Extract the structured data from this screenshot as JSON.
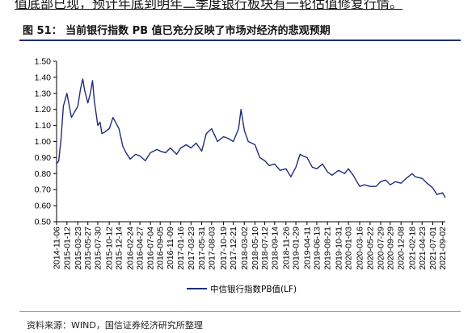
{
  "header_text": "值底部已现，预计年底到明年二季度银行板块有一轮估值修复行情。",
  "figure": {
    "title": "图 51： 当前银行指数 PB 值已充分反映了市场对经济的悲观预期",
    "source": "资料来源：WIND，国信证券经济研究所整理"
  },
  "colors": {
    "series": "#1f2e78",
    "rule": "#1f2e78"
  },
  "chart_data": {
    "type": "line",
    "title": "",
    "xlabel": "",
    "ylabel": "",
    "ylim": [
      0.5,
      1.5
    ],
    "yticks": [
      "1.50",
      "1.40",
      "1.30",
      "1.20",
      "1.10",
      "1.00",
      "0.90",
      "0.80",
      "0.70",
      "0.60",
      "0.50"
    ],
    "grid": false,
    "legend_position": "bottom-center",
    "x_tick_labels": [
      "2014-11-06",
      "2015-01-12",
      "2015-03-23",
      "2015-05-27",
      "2015-07-30",
      "2015-10-12",
      "2015-12-14",
      "2016-02-24",
      "2016-04-27",
      "2016-07-04",
      "2016-09-05",
      "2016-11-09",
      "2017-01-16",
      "2017-03-23",
      "2017-05-31",
      "2017-08-03",
      "2017-10-19",
      "2017-12-21",
      "2018-03-02",
      "2018-05-10",
      "2018-07-12",
      "2018-09-14",
      "2018-11-26",
      "2019-01-29",
      "2019-04-11",
      "2019-06-13",
      "2019-08-21",
      "2019-10-31",
      "2020-01-03",
      "2020-03-16",
      "2020-05-22",
      "2020-07-29",
      "2020-09-29",
      "2020-12-08",
      "2021-02-18",
      "2021-04-23",
      "2021-07-01",
      "2021-09-02"
    ],
    "series": [
      {
        "name": "中信银行指数PB值(LF)",
        "x": [
          "2014-11-06",
          "2014-11-20",
          "2014-12-05",
          "2014-12-20",
          "2015-01-12",
          "2015-02-10",
          "2015-03-23",
          "2015-04-10",
          "2015-04-24",
          "2015-05-06",
          "2015-05-27",
          "2015-06-12",
          "2015-06-26",
          "2015-07-08",
          "2015-07-30",
          "2015-08-14",
          "2015-08-26",
          "2015-09-15",
          "2015-10-12",
          "2015-11-05",
          "2015-12-14",
          "2016-01-08",
          "2016-01-28",
          "2016-02-24",
          "2016-03-30",
          "2016-04-27",
          "2016-06-01",
          "2016-07-04",
          "2016-08-15",
          "2016-09-05",
          "2016-10-10",
          "2016-11-09",
          "2016-12-20",
          "2017-01-16",
          "2017-02-20",
          "2017-03-23",
          "2017-04-25",
          "2017-05-31",
          "2017-06-30",
          "2017-08-03",
          "2017-09-10",
          "2017-10-19",
          "2017-11-15",
          "2017-12-21",
          "2018-01-24",
          "2018-02-09",
          "2018-03-02",
          "2018-03-28",
          "2018-05-10",
          "2018-06-10",
          "2018-07-12",
          "2018-08-10",
          "2018-09-14",
          "2018-10-19",
          "2018-11-26",
          "2018-12-28",
          "2019-01-29",
          "2019-02-25",
          "2019-03-15",
          "2019-04-11",
          "2019-05-15",
          "2019-06-13",
          "2019-07-20",
          "2019-08-21",
          "2019-09-20",
          "2019-10-31",
          "2019-12-10",
          "2020-01-03",
          "2020-02-03",
          "2020-03-16",
          "2020-04-15",
          "2020-05-22",
          "2020-06-30",
          "2020-07-29",
          "2020-08-31",
          "2020-09-29",
          "2020-11-01",
          "2020-12-08",
          "2021-01-10",
          "2021-02-18",
          "2021-03-10",
          "2021-04-23",
          "2021-05-25",
          "2021-07-01",
          "2021-07-28",
          "2021-09-02",
          "2021-09-20"
        ],
        "values": [
          0.86,
          0.88,
          1.02,
          1.22,
          1.3,
          1.15,
          1.22,
          1.33,
          1.39,
          1.32,
          1.24,
          1.3,
          1.38,
          1.25,
          1.1,
          1.12,
          1.05,
          1.06,
          1.08,
          1.15,
          1.08,
          0.97,
          0.93,
          0.89,
          0.92,
          0.91,
          0.88,
          0.93,
          0.95,
          0.94,
          0.93,
          0.96,
          0.92,
          0.96,
          0.98,
          0.96,
          0.99,
          0.94,
          1.05,
          1.08,
          1.0,
          1.03,
          1.02,
          1.0,
          1.08,
          1.2,
          1.07,
          1.0,
          0.98,
          0.9,
          0.88,
          0.85,
          0.86,
          0.82,
          0.83,
          0.78,
          0.84,
          0.92,
          0.91,
          0.9,
          0.84,
          0.83,
          0.86,
          0.81,
          0.79,
          0.82,
          0.8,
          0.83,
          0.79,
          0.72,
          0.73,
          0.72,
          0.72,
          0.75,
          0.76,
          0.73,
          0.75,
          0.74,
          0.77,
          0.8,
          0.78,
          0.77,
          0.74,
          0.71,
          0.67,
          0.68,
          0.65
        ]
      }
    ]
  }
}
